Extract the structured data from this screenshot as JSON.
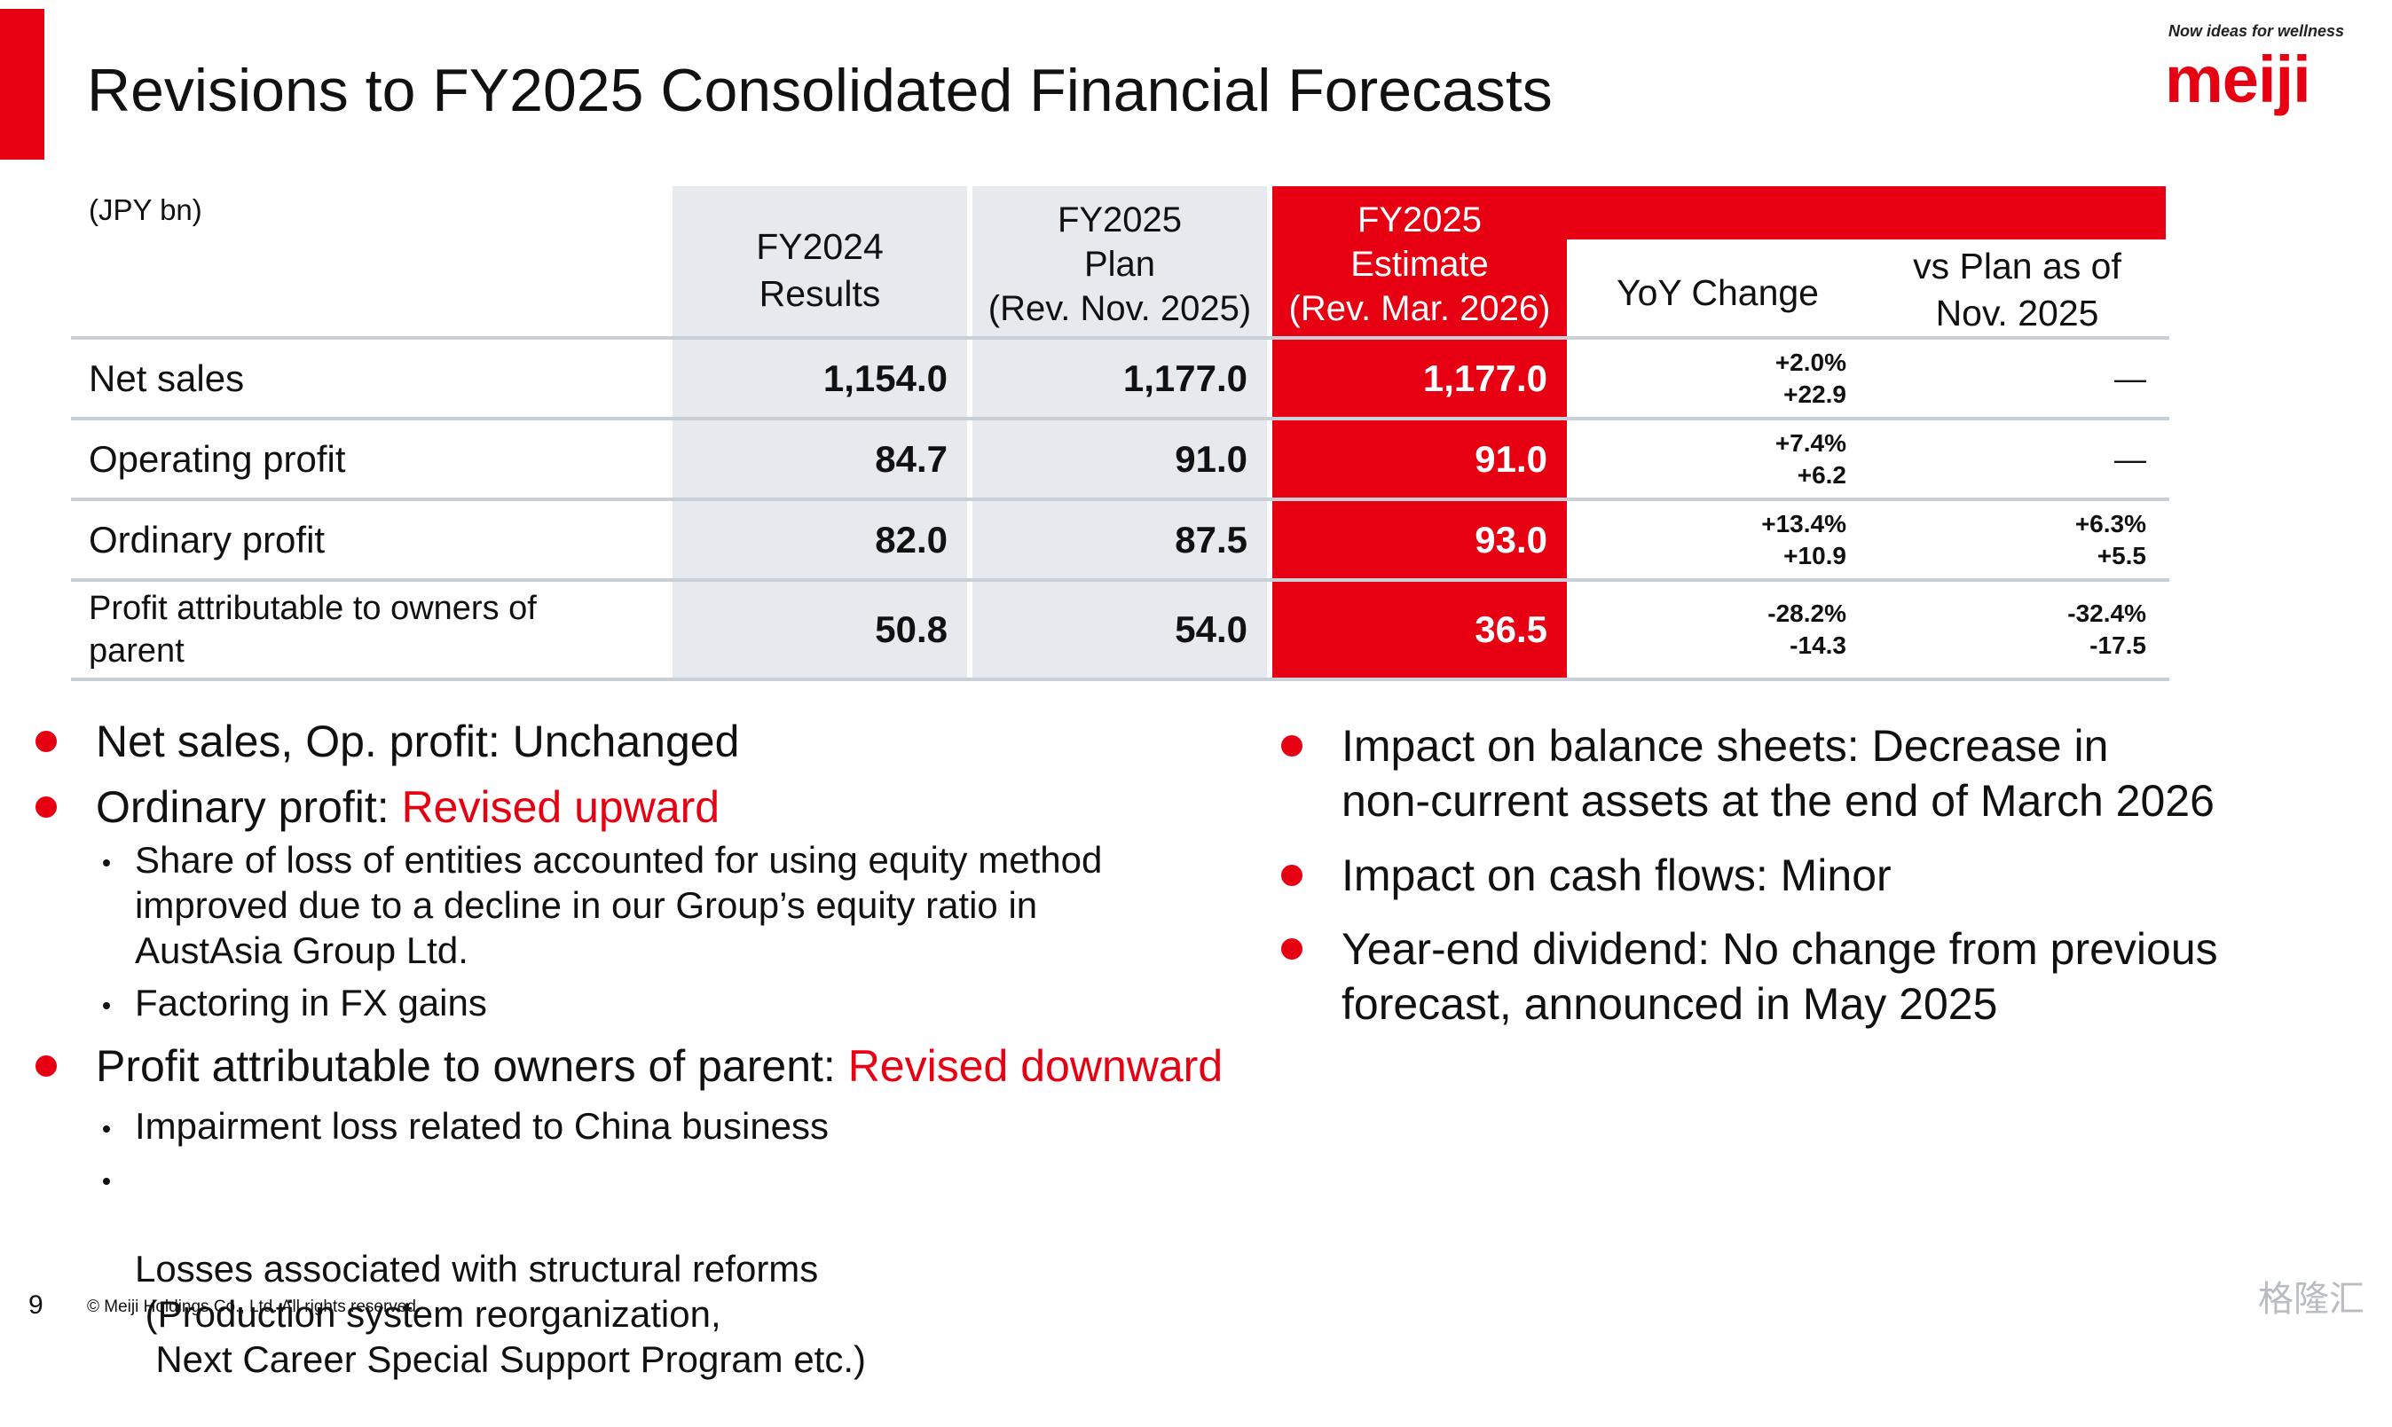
{
  "slide": {
    "title": "Revisions to FY2025 Consolidated Financial Forecasts",
    "tagline": "Now ideas for wellness",
    "logo": "meiji"
  },
  "table": {
    "unit": "(JPY bn)",
    "headers": {
      "fy2024": [
        "FY2024",
        "Results"
      ],
      "fy2025_plan": [
        "FY2025",
        "Plan",
        "(Rev. Nov. 2025)"
      ],
      "fy2025_estimate": [
        "FY2025",
        "Estimate",
        "(Rev. Mar. 2026)"
      ],
      "yoy": "YoY Change",
      "vs_plan": [
        "vs Plan as of",
        "Nov. 2025"
      ]
    },
    "rows": [
      {
        "label": "Net sales",
        "fy2024": "1,154.0",
        "plan": "1,177.0",
        "estimate": "1,177.0",
        "yoy_pct": "+2.0%",
        "yoy_amt": "+22.9",
        "vs_pct": "",
        "vs_amt": "",
        "vs_dash": "—"
      },
      {
        "label": "Operating profit",
        "fy2024": "84.7",
        "plan": "91.0",
        "estimate": "91.0",
        "yoy_pct": "+7.4%",
        "yoy_amt": "+6.2",
        "vs_pct": "",
        "vs_amt": "",
        "vs_dash": "—"
      },
      {
        "label": "Ordinary profit",
        "fy2024": "82.0",
        "plan": "87.5",
        "estimate": "93.0",
        "yoy_pct": "+13.4%",
        "yoy_amt": "+10.9",
        "vs_pct": "+6.3%",
        "vs_amt": "+5.5",
        "vs_dash": ""
      },
      {
        "label": "Profit attributable to owners of parent",
        "fy2024": "50.8",
        "plan": "54.0",
        "estimate": "36.5",
        "yoy_pct": "-28.2%",
        "yoy_amt": "-14.3",
        "vs_pct": "-32.4%",
        "vs_amt": "-17.5",
        "vs_dash": ""
      }
    ]
  },
  "left_bullets": {
    "b1": "Net sales, Op. profit: Unchanged",
    "b2_prefix": "Ordinary profit: ",
    "b2_highlight": "Revised upward",
    "b2_subs": [
      [
        "Share of loss of entities accounted for using equity method",
        "improved due to a decline in our Group’s equity ratio in",
        "AustAsia Group Ltd."
      ],
      [
        "Factoring in FX gains"
      ]
    ],
    "b3_prefix": "Profit attributable to owners of parent: ",
    "b3_highlight": "Revised downward",
    "b3_subs": [
      [
        "Impairment loss related to China business"
      ],
      [
        "Losses associated with structural reforms",
        " (Production system reorganization,",
        "  Next Career Special Support Program etc.)"
      ]
    ]
  },
  "right_bullets": [
    [
      "Impact on balance sheets: Decrease in",
      "non-current assets at the end of March 2026"
    ],
    [
      "Impact on cash flows: Minor"
    ],
    [
      "Year-end dividend: No change from previous",
      "forecast, announced in May 2025"
    ]
  ],
  "footer": {
    "page": "9",
    "copyright": "© Meiji Holdings Co., Ltd. All rights reserved.",
    "watermark": "格隆汇"
  },
  "colors": {
    "accent": "#e60012",
    "grey_column": "#e6e9ed",
    "rule": "#c9cfd6"
  }
}
